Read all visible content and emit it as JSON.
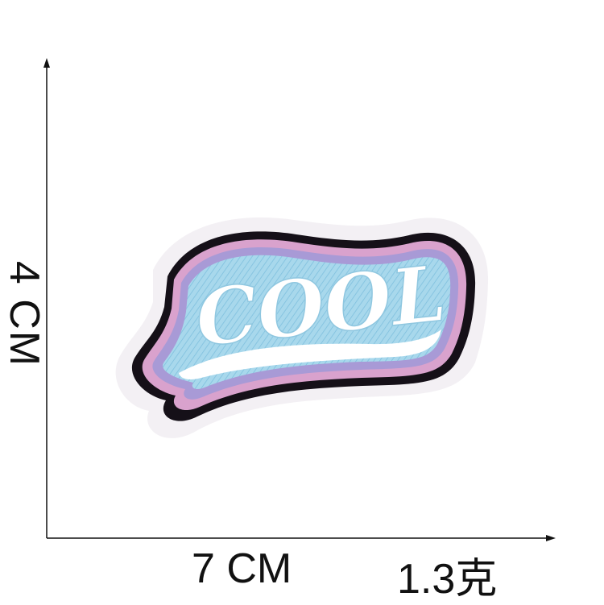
{
  "dimensions": {
    "height": "4 CM",
    "width": "7 CM",
    "weight": "1.3克"
  },
  "patch": {
    "text": "COOL",
    "colors": {
      "backing": "#f3f0f4",
      "outline": "#151018",
      "pink": "#d9a2cd",
      "purple": "#a89ad6",
      "fill": "#a8d8ec",
      "letters": "#ffffff"
    }
  }
}
